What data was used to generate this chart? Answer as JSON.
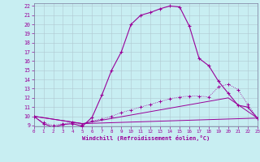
{
  "xlabel": "Windchill (Refroidissement éolien,°C)",
  "background_color": "#c8eef2",
  "grid_color": "#b0c8d0",
  "line_color": "#990099",
  "xmin": 0,
  "xmax": 23,
  "ymin": 9,
  "ymax": 22,
  "curve1_x": [
    0,
    1,
    2,
    3,
    4,
    5,
    6,
    7,
    8,
    9,
    10,
    11,
    12,
    13,
    14,
    15,
    16,
    17,
    18,
    19,
    20,
    21,
    22,
    23
  ],
  "curve1_y": [
    10.0,
    9.2,
    8.8,
    9.1,
    9.2,
    8.9,
    9.9,
    12.3,
    15.0,
    17.0,
    20.0,
    21.0,
    21.3,
    21.7,
    22.0,
    21.9,
    19.8,
    16.3,
    15.5,
    13.8,
    12.5,
    11.2,
    11.0,
    9.8
  ],
  "curve2_x": [
    0,
    1,
    2,
    3,
    4,
    5,
    6,
    7,
    8,
    9,
    10,
    11,
    12,
    13,
    14,
    15,
    16,
    17,
    18,
    19,
    20,
    21,
    22,
    23
  ],
  "curve2_y": [
    10.0,
    9.3,
    9.0,
    9.2,
    9.3,
    9.1,
    9.5,
    9.7,
    10.0,
    10.4,
    10.7,
    11.0,
    11.3,
    11.6,
    11.9,
    12.1,
    12.2,
    12.2,
    12.1,
    13.2,
    13.5,
    12.9,
    11.3,
    9.8
  ],
  "curve3_x": [
    0,
    5,
    23
  ],
  "curve3_y": [
    10.0,
    9.2,
    9.8
  ],
  "curve4_x": [
    0,
    5,
    20,
    23
  ],
  "curve4_y": [
    10.0,
    9.2,
    12.0,
    9.8
  ],
  "xticks": [
    0,
    1,
    2,
    3,
    4,
    5,
    6,
    7,
    8,
    9,
    10,
    11,
    12,
    13,
    14,
    15,
    16,
    17,
    18,
    19,
    20,
    21,
    22,
    23
  ],
  "yticks": [
    9,
    10,
    11,
    12,
    13,
    14,
    15,
    16,
    17,
    18,
    19,
    20,
    21,
    22
  ]
}
